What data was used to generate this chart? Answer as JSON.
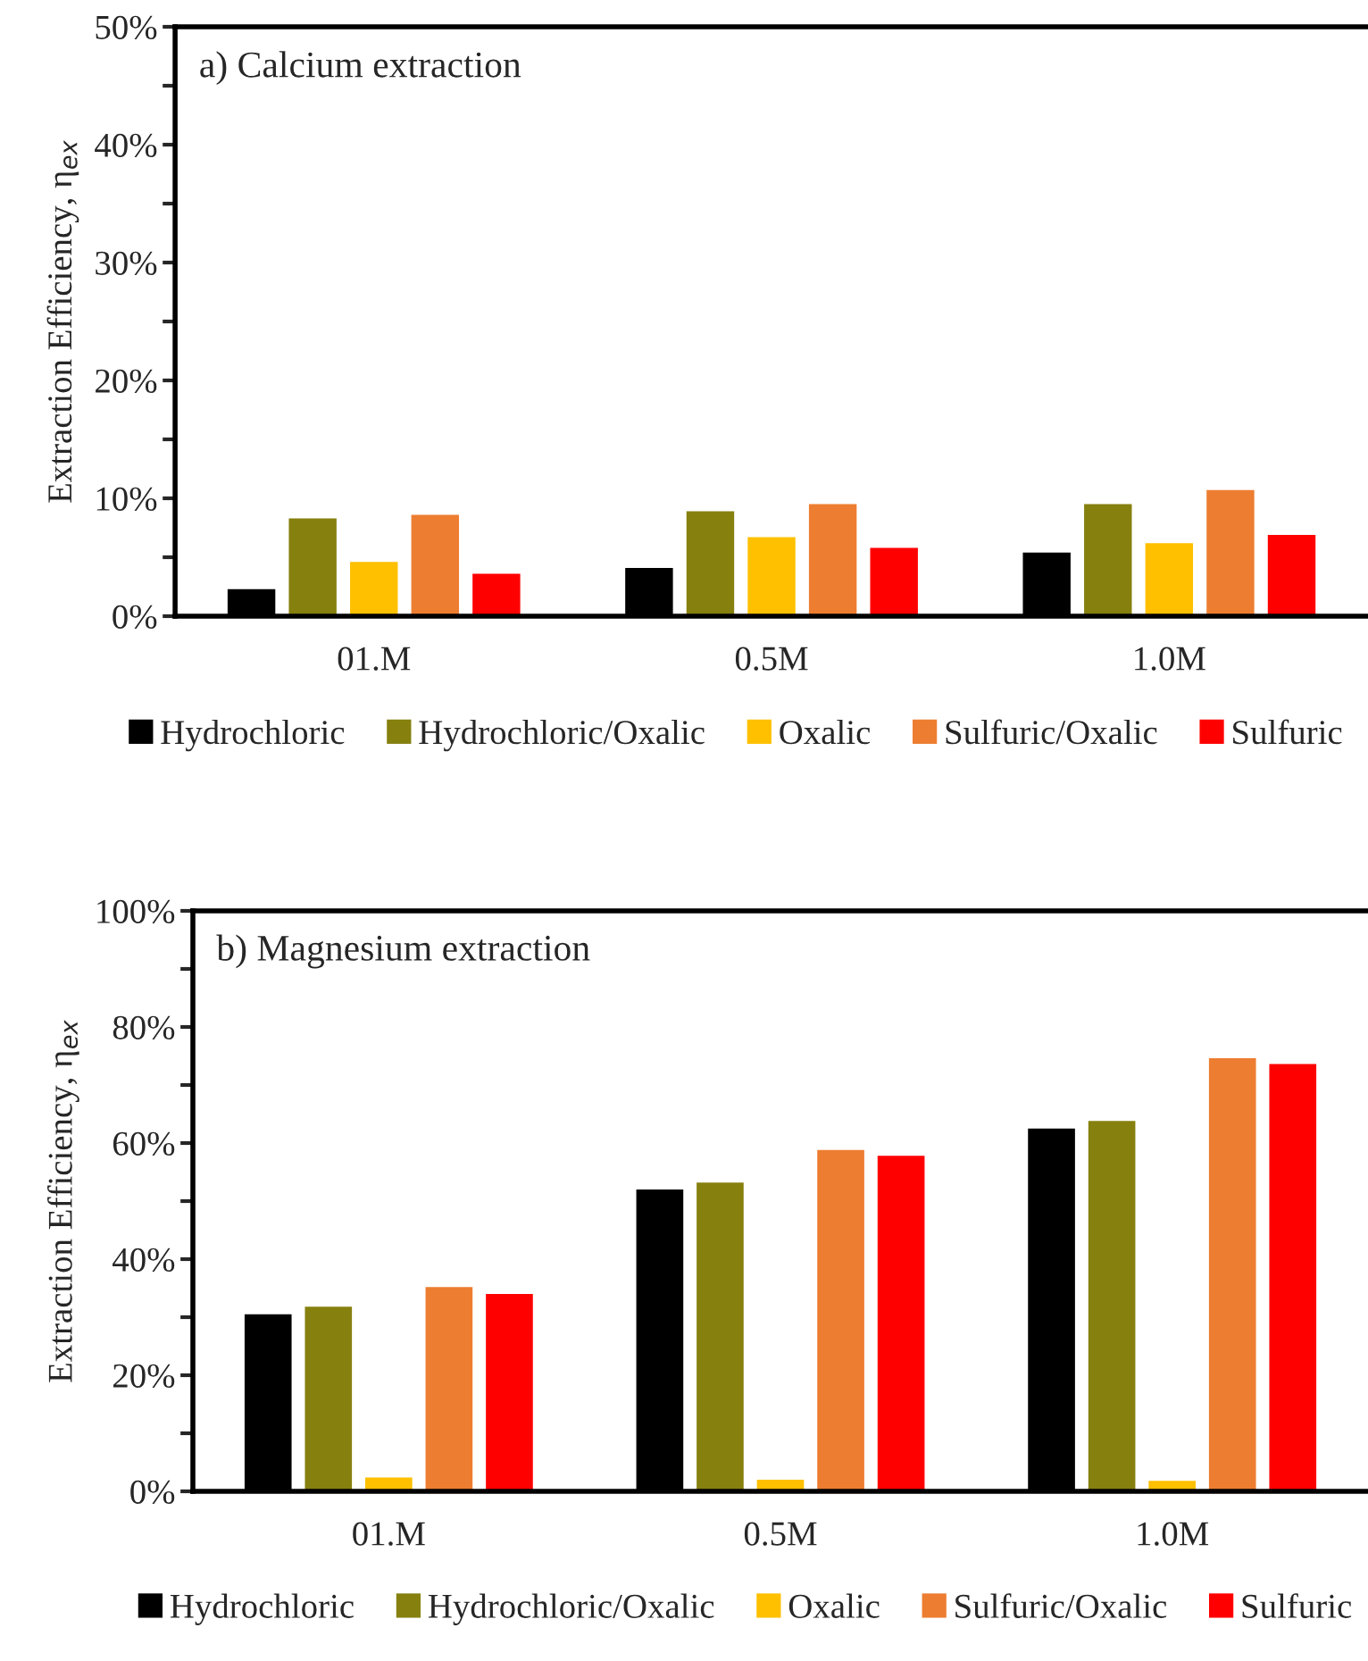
{
  "chart_data": [
    {
      "type": "bar",
      "categories": [
        "01.M",
        "0.5M",
        "1.0M"
      ],
      "ylabel": "Extraction Efficiency, η$_{ex}$",
      "annotations": [
        "a) Calcium extraction"
      ],
      "ylim": [
        0,
        50
      ],
      "yticks": [
        {
          "value": 0,
          "label": "0%"
        },
        {
          "value": 5,
          "label": null
        },
        {
          "value": 10,
          "label": "10%"
        },
        {
          "value": 15,
          "label": null
        },
        {
          "value": 20,
          "label": "20%"
        },
        {
          "value": 25,
          "label": null
        },
        {
          "value": 30,
          "label": "30%"
        },
        {
          "value": 35,
          "label": null
        },
        {
          "value": 40,
          "label": "40%"
        },
        {
          "value": 45,
          "label": null
        },
        {
          "value": 50,
          "label": "50%"
        }
      ],
      "legend": "bottom",
      "grid": false,
      "series": [
        {
          "name": "Hydrochloric",
          "color": "#000000",
          "values": [
            2.3,
            4.1,
            5.4
          ]
        },
        {
          "name": "Hydrochloric/Oxalic",
          "color": "#86800f",
          "values": [
            8.3,
            8.9,
            9.5
          ]
        },
        {
          "name": "Oxalic",
          "color": "#ffc000",
          "values": [
            4.6,
            6.7,
            6.2
          ]
        },
        {
          "name": "Sulfuric/Oxalic",
          "color": "#ed7d31",
          "values": [
            8.6,
            9.5,
            10.7
          ]
        },
        {
          "name": "Sulfuric",
          "color": "#ff0000",
          "values": [
            3.6,
            5.8,
            6.9
          ]
        }
      ]
    },
    {
      "type": "bar",
      "categories": [
        "01.M",
        "0.5M",
        "1.0M"
      ],
      "ylabel": "Extraction Efficiency, η$_{ex}$",
      "annotations": [
        "b) Magnesium extraction"
      ],
      "ylim": [
        0,
        100
      ],
      "yticks": [
        {
          "value": 0,
          "label": "0%"
        },
        {
          "value": 10,
          "label": null
        },
        {
          "value": 20,
          "label": "20%"
        },
        {
          "value": 30,
          "label": null
        },
        {
          "value": 40,
          "label": "40%"
        },
        {
          "value": 50,
          "label": null
        },
        {
          "value": 60,
          "label": "60%"
        },
        {
          "value": 70,
          "label": null
        },
        {
          "value": 80,
          "label": "80%"
        },
        {
          "value": 90,
          "label": null
        },
        {
          "value": 100,
          "label": "100%"
        }
      ],
      "legend": "bottom",
      "grid": false,
      "series": [
        {
          "name": "Hydrochloric",
          "color": "#000000",
          "values": [
            30.5,
            52.0,
            62.5
          ]
        },
        {
          "name": "Hydrochloric/Oxalic",
          "color": "#86800f",
          "values": [
            31.8,
            53.2,
            63.8
          ]
        },
        {
          "name": "Oxalic",
          "color": "#ffc000",
          "values": [
            2.4,
            2.0,
            1.8
          ]
        },
        {
          "name": "Sulfuric/Oxalic",
          "color": "#ed7d31",
          "values": [
            35.2,
            58.8,
            74.6
          ]
        },
        {
          "name": "Sulfuric",
          "color": "#ff0000",
          "values": [
            34.0,
            57.8,
            73.6
          ]
        }
      ]
    }
  ]
}
